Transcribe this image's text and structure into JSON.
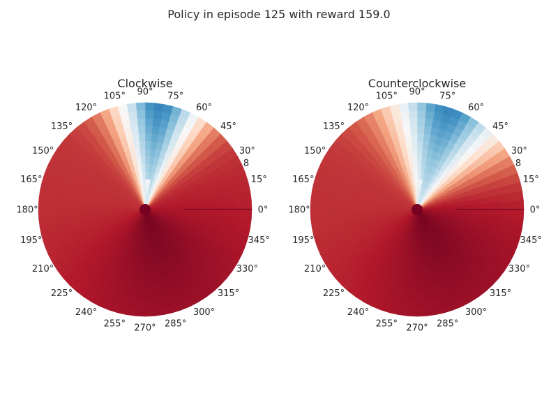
{
  "chart_data": {
    "type": "heatmap",
    "projection": "polar",
    "suptitle": "Policy in episode 125 with reward 159.0",
    "colormap": "RdBu_r",
    "angular_ticks": [
      "0°",
      "15°",
      "30°",
      "45°",
      "60°",
      "75°",
      "90°",
      "105°",
      "120°",
      "135°",
      "150°",
      "165°",
      "180°",
      "195°",
      "210°",
      "225°",
      "240°",
      "255°",
      "270°",
      "285°",
      "300°",
      "315°",
      "330°",
      "345°"
    ],
    "radial_tick": "8",
    "panels": [
      {
        "title": "Clockwise",
        "grid": false,
        "hot_center_deg": 82,
        "hot_width_deg": 18,
        "dark_center_deg": 290,
        "cold_streak_deg": 84
      },
      {
        "title": "Counterclockwise",
        "grid": false,
        "hot_center_deg": 72,
        "hot_width_deg": 24,
        "dark_center_deg": 300,
        "cold_streak_deg": 86
      }
    ]
  }
}
